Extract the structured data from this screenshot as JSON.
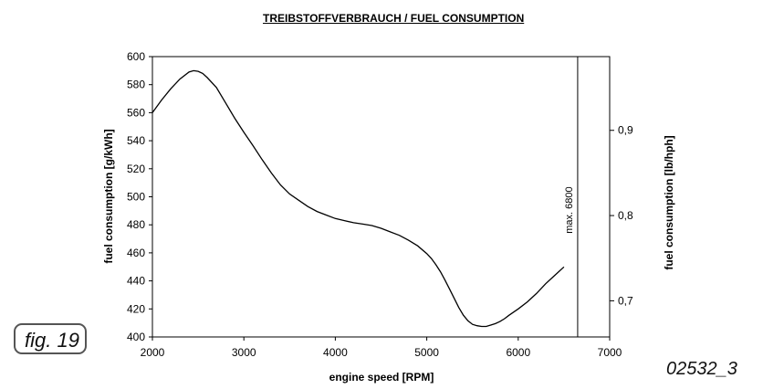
{
  "figure": {
    "label": "fig. 19",
    "code": "02532_3"
  },
  "chart_data": {
    "type": "line",
    "title": "TREIBSTOFFVERBRAUCH / FUEL CONSUMPTION",
    "xlabel": "engine speed [RPM]",
    "ylabel": "fuel consumption [g/kWh]",
    "y2label": "fuel consumption [lb/hph]",
    "xlim": [
      2000,
      7000
    ],
    "ylim": [
      400,
      600
    ],
    "x_ticks": [
      2000,
      3000,
      4000,
      5000,
      6000,
      7000
    ],
    "y_ticks": [
      400,
      420,
      440,
      460,
      480,
      500,
      520,
      540,
      560,
      580,
      600
    ],
    "y2_ticks": [
      {
        "label": "0,7",
        "value": 425.8
      },
      {
        "label": "0,8",
        "value": 486.6
      },
      {
        "label": "0,9",
        "value": 547.4
      }
    ],
    "grid": false,
    "series": [
      {
        "x": [
          2000,
          2100,
          2200,
          2300,
          2400,
          2450,
          2500,
          2550,
          2600,
          2700,
          2800,
          2900,
          3000,
          3100,
          3200,
          3300,
          3400,
          3500,
          3600,
          3700,
          3800,
          3900,
          4000,
          4100,
          4200,
          4300,
          4400,
          4500,
          4600,
          4700,
          4800,
          4900,
          5000,
          5050,
          5100,
          5150,
          5200,
          5250,
          5300,
          5350,
          5400,
          5450,
          5500,
          5550,
          5600,
          5650,
          5700,
          5750,
          5800,
          5850,
          5900,
          6000,
          6100,
          6200,
          6300,
          6400,
          6500
        ],
        "values": [
          560,
          569,
          577,
          584,
          589,
          590,
          589.5,
          588,
          585,
          578,
          567,
          556,
          546,
          536.5,
          526.5,
          517,
          508.5,
          502,
          497.5,
          493,
          489.5,
          487,
          484.5,
          483,
          481.5,
          480.5,
          479.5,
          477.5,
          475,
          472.5,
          469,
          465,
          459.5,
          456,
          451.5,
          446.5,
          440.5,
          434,
          427.5,
          421,
          415.5,
          411.5,
          409,
          408,
          407.5,
          407.5,
          408.5,
          409.5,
          411,
          413,
          415.5,
          420,
          425,
          431,
          438,
          444,
          450
        ]
      }
    ],
    "vline": {
      "x": 6650,
      "label": "max. 6800"
    }
  }
}
